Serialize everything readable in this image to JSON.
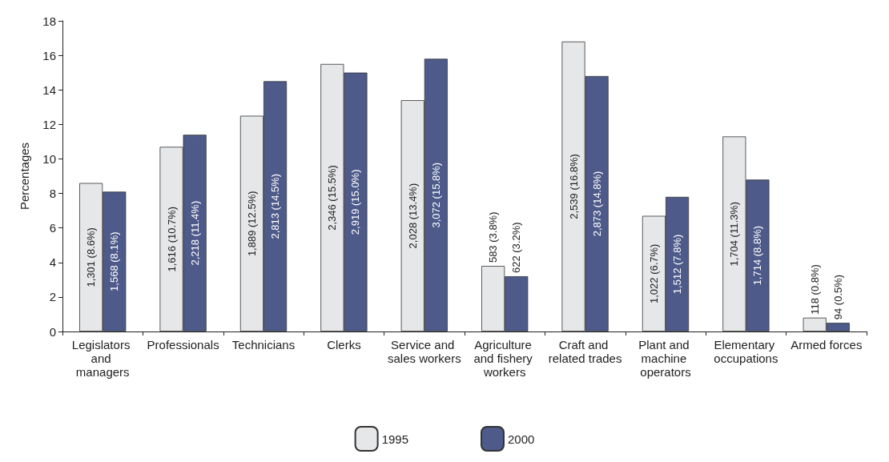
{
  "chart_data": {
    "type": "bar",
    "ylabel": "Percentages",
    "categories": [
      "Legislators and managers",
      "Professionals",
      "Technicians",
      "Clerks",
      "Service and sales workers",
      "Agriculture and fishery workers",
      "Craft and related trades",
      "Plant and machine operators",
      "Elementary occupations",
      "Armed forces"
    ],
    "series": [
      {
        "name": "1995",
        "color": "#e6e7e9",
        "values": [
          8.6,
          10.7,
          12.5,
          15.5,
          13.4,
          3.8,
          16.8,
          6.7,
          11.3,
          0.8
        ],
        "value_labels": [
          "1,301 (8.6%)",
          "1,616 (10.7%)",
          "1,889 (12.5%)",
          "2,346 (15.5%)",
          "2,028 (13.4%)",
          "583 (3.8%)",
          "2,539 (16.8%)",
          "1,022 (6.7%)",
          "1,704 (11.3%)",
          "118 (0.8%)"
        ]
      },
      {
        "name": "2000",
        "color": "#4d5a8a",
        "values": [
          8.1,
          11.4,
          14.5,
          15.0,
          15.8,
          3.2,
          14.8,
          7.8,
          8.8,
          0.5
        ],
        "value_labels": [
          "1,568 (8.1%)",
          "2,218 (11.4%)",
          "2,813 (14.5%)",
          "2,919 (15.0%)",
          "3,072 (15.8%)",
          "622 (3.2%)",
          "2,873 (14.8%)",
          "1,512 (7.8%)",
          "1,714 (8.8%)",
          "94 (0.5%)"
        ]
      }
    ],
    "ylim": [
      0,
      18
    ],
    "yticks": [
      0,
      2,
      4,
      6,
      8,
      10,
      12,
      14,
      16,
      18
    ],
    "grid": false,
    "legend": "bottom"
  }
}
